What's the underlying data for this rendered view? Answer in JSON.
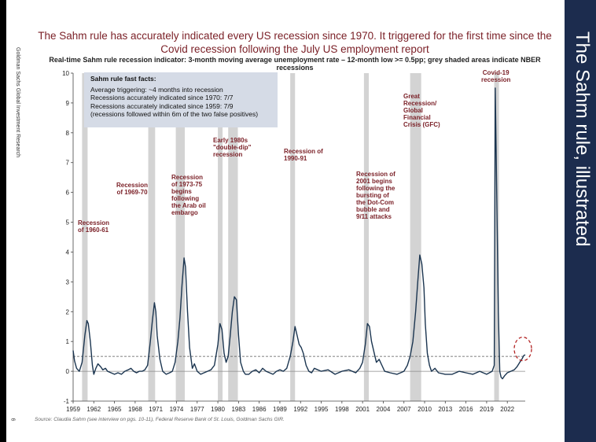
{
  "side_label": "Goldman Sachs Global Investment Research",
  "page_number": "6",
  "right_title": "The Sahm rule, illustrated",
  "title": "The Sahm rule has accurately indicated every US recession since 1970. It triggered for the first time since the Covid recession following the July US employment report",
  "source": "Source: Claudia Sahm (see interview on pgs. 10-11), Federal Reserve Bank of St. Louis, Goldman Sachs GIR.",
  "facts": {
    "heading": "Sahm rule fast facts:",
    "line1": "Average triggering: ~4 months into recession",
    "line2": "Recessions accurately indicated since 1970: 7/7",
    "line3": "Recessions accurately indicated since 1959: 7/9",
    "line4": "(recessions followed within 6m of the two false positives)"
  },
  "annotations": {
    "r1960": "Recession\nof 1960-61",
    "r1969": "Recession\nof 1969-70",
    "r1973": "Recession\nof 1973-75\nbegins\nfollowing\nthe Arab oil\nembargo",
    "r1980": "Early 1980s\n\"double-dip\"\nrecession",
    "r1990": "Recession of\n1990-91",
    "r2001": "Recession of\n2001 begins\nfollowing the\nbursting of\nthe Dot-Com\nbubble and\n9/11 attacks",
    "r2008": "Great\nRecession/\nGlobal\nFinancial\nCrisis (GFC)",
    "r2020": "Covid-19\nrecession"
  },
  "colors": {
    "line": "#1b3550",
    "shade": "#d3d3d3",
    "threshold": "#555555",
    "highlight": "#b22222",
    "accent": "#7a1f26",
    "panel": "#1c2c4e"
  },
  "chart_data": {
    "type": "line",
    "title": "Real-time Sahm rule recession indicator: 3-month moving average unemployment rate – 12-month low >= 0.5pp; grey shaded areas indicate NBER recessions",
    "xlabel": "",
    "ylabel": "",
    "xlim": [
      1959,
      2024.6
    ],
    "ylim": [
      -1,
      10
    ],
    "yticks": [
      -1,
      0,
      1,
      2,
      3,
      4,
      5,
      6,
      7,
      8,
      9,
      10
    ],
    "xticks": [
      1959,
      1962,
      1965,
      1968,
      1971,
      1974,
      1977,
      1980,
      1983,
      1986,
      1989,
      1992,
      1995,
      1998,
      2001,
      2004,
      2007,
      2010,
      2013,
      2016,
      2019,
      2022
    ],
    "threshold": 0.5,
    "recessions": [
      [
        1960.3,
        1961.1
      ],
      [
        1969.9,
        1970.9
      ],
      [
        1973.9,
        1975.2
      ],
      [
        1980.0,
        1980.5
      ],
      [
        1981.5,
        1982.9
      ],
      [
        1990.5,
        1991.2
      ],
      [
        2001.2,
        2001.9
      ],
      [
        2007.9,
        2009.5
      ],
      [
        2020.1,
        2020.3
      ]
    ],
    "series": [
      {
        "name": "Real-time Sahm rule indicator",
        "x": [
          1959.0,
          1959.2,
          1959.5,
          1959.9,
          1960.3,
          1960.7,
          1961.0,
          1961.2,
          1961.5,
          1961.8,
          1962.0,
          1962.3,
          1962.6,
          1963.0,
          1963.3,
          1963.7,
          1964.0,
          1964.5,
          1965.0,
          1965.5,
          1966.0,
          1966.5,
          1967.0,
          1967.4,
          1967.8,
          1968.2,
          1968.6,
          1969.0,
          1969.4,
          1969.8,
          1970.2,
          1970.5,
          1970.8,
          1971.0,
          1971.2,
          1971.6,
          1972.0,
          1972.5,
          1973.0,
          1973.4,
          1973.8,
          1974.2,
          1974.5,
          1974.8,
          1975.1,
          1975.3,
          1975.6,
          1975.9,
          1976.3,
          1976.6,
          1977.0,
          1977.5,
          1978.0,
          1978.5,
          1979.0,
          1979.5,
          1980.0,
          1980.3,
          1980.6,
          1980.9,
          1981.2,
          1981.5,
          1981.8,
          1982.1,
          1982.4,
          1982.7,
          1983.0,
          1983.3,
          1983.7,
          1984.0,
          1984.5,
          1985.0,
          1985.5,
          1986.0,
          1986.5,
          1987.0,
          1987.5,
          1988.0,
          1988.5,
          1989.0,
          1989.5,
          1990.0,
          1990.5,
          1990.9,
          1991.2,
          1991.5,
          1991.8,
          1992.1,
          1992.4,
          1992.8,
          1993.2,
          1993.6,
          1994.0,
          1995.0,
          1996.0,
          1997.0,
          1998.0,
          1999.0,
          2000.0,
          2000.6,
          2001.0,
          2001.4,
          2001.7,
          2002.0,
          2002.3,
          2002.7,
          2003.0,
          2003.4,
          2003.8,
          2004.2,
          2005.0,
          2006.0,
          2007.0,
          2007.5,
          2007.9,
          2008.3,
          2008.7,
          2009.0,
          2009.3,
          2009.6,
          2009.9,
          2010.1,
          2010.4,
          2010.7,
          2011.0,
          2011.5,
          2012.0,
          2013.0,
          2014.0,
          2015.0,
          2016.0,
          2017.0,
          2018.0,
          2019.0,
          2019.8,
          2020.1,
          2020.25,
          2020.4,
          2020.7,
          2020.9,
          2021.1,
          2021.3,
          2021.6,
          2022.0,
          2022.5,
          2023.0,
          2023.4,
          2023.8,
          2024.1,
          2024.4,
          2024.6
        ],
        "values": [
          0.7,
          0.35,
          0.1,
          0.0,
          0.3,
          1.2,
          1.7,
          1.6,
          1.0,
          0.2,
          -0.1,
          0.1,
          0.25,
          0.15,
          0.05,
          0.1,
          0.0,
          -0.05,
          -0.1,
          -0.05,
          -0.1,
          0.0,
          0.05,
          0.1,
          0.0,
          -0.05,
          0.0,
          0.0,
          0.05,
          0.2,
          1.0,
          1.7,
          2.3,
          2.0,
          1.2,
          0.4,
          0.0,
          -0.1,
          -0.05,
          0.0,
          0.3,
          1.0,
          1.8,
          2.9,
          3.8,
          3.5,
          2.0,
          0.8,
          0.1,
          0.25,
          0.0,
          -0.1,
          -0.05,
          0.0,
          0.05,
          0.2,
          0.9,
          1.6,
          1.4,
          0.6,
          0.3,
          0.5,
          1.2,
          2.0,
          2.5,
          2.4,
          1.2,
          0.3,
          0.0,
          -0.1,
          -0.1,
          0.0,
          0.05,
          -0.05,
          0.1,
          0.0,
          -0.05,
          -0.1,
          0.0,
          0.05,
          0.0,
          0.1,
          0.5,
          1.0,
          1.5,
          1.2,
          0.9,
          0.8,
          0.6,
          0.2,
          0.0,
          -0.05,
          0.1,
          0.0,
          0.05,
          -0.1,
          0.0,
          0.05,
          -0.05,
          0.1,
          0.3,
          0.9,
          1.6,
          1.5,
          1.0,
          0.6,
          0.3,
          0.4,
          0.2,
          0.0,
          -0.05,
          -0.1,
          0.0,
          0.2,
          0.5,
          1.0,
          2.0,
          3.0,
          3.9,
          3.6,
          2.8,
          1.6,
          0.6,
          0.2,
          0.0,
          0.1,
          -0.05,
          -0.1,
          -0.1,
          0.0,
          -0.05,
          -0.1,
          0.0,
          -0.1,
          0.0,
          0.2,
          9.5,
          7.0,
          2.0,
          0.0,
          -0.2,
          -0.25,
          -0.15,
          -0.05,
          0.0,
          0.05,
          0.15,
          0.3,
          0.4,
          0.53,
          0.55
        ]
      }
    ]
  }
}
